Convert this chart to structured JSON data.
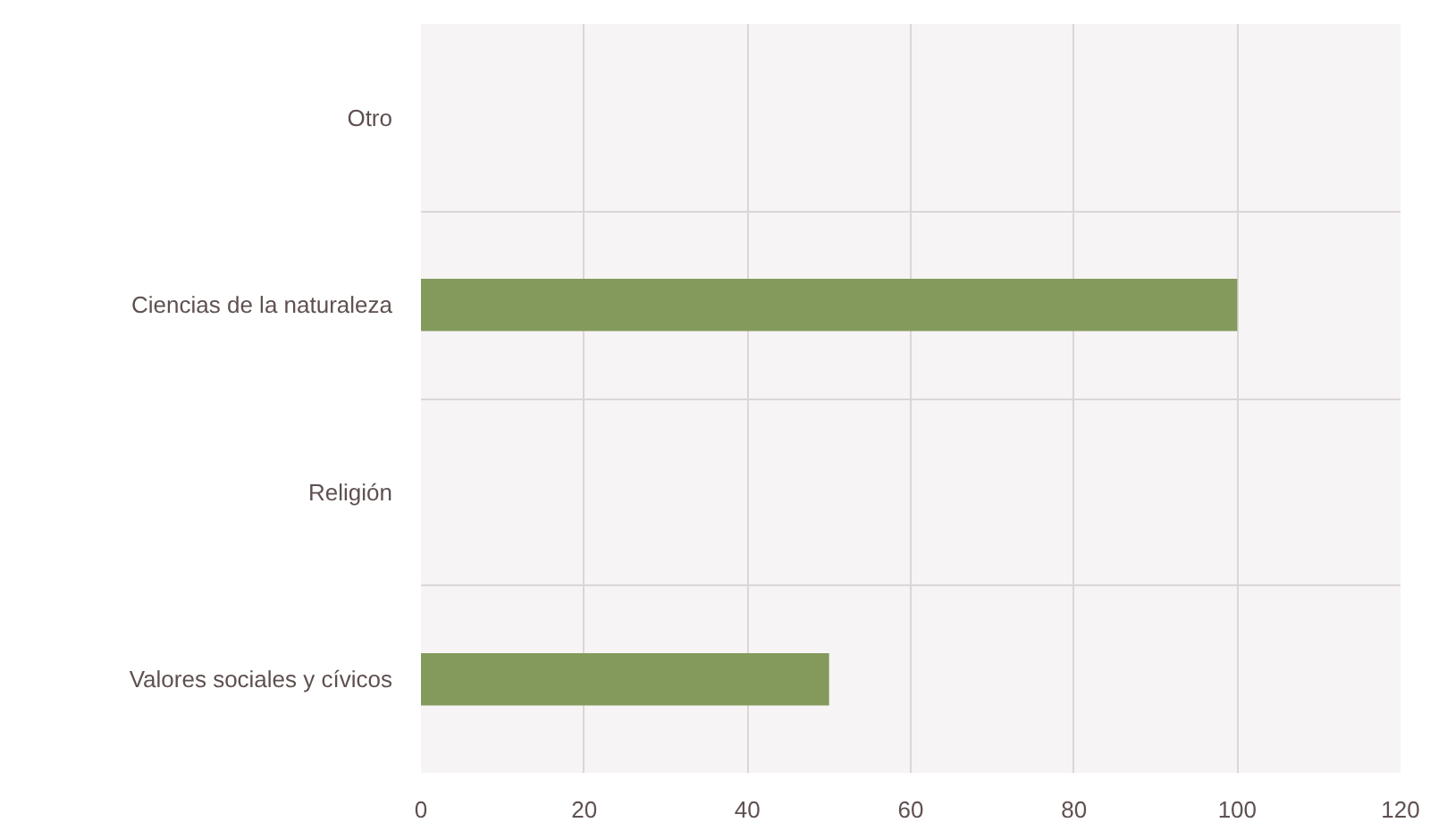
{
  "chart_data": {
    "type": "bar",
    "orientation": "horizontal",
    "categories": [
      "Otro",
      "Ciencias de la naturaleza",
      "Religión",
      "Valores sociales y cívicos"
    ],
    "values": [
      0,
      100,
      0,
      50
    ],
    "color": "#839a5c",
    "xlim": [
      0,
      120
    ],
    "xticks": [
      0,
      20,
      40,
      60,
      80,
      100,
      120
    ],
    "grid": true
  }
}
